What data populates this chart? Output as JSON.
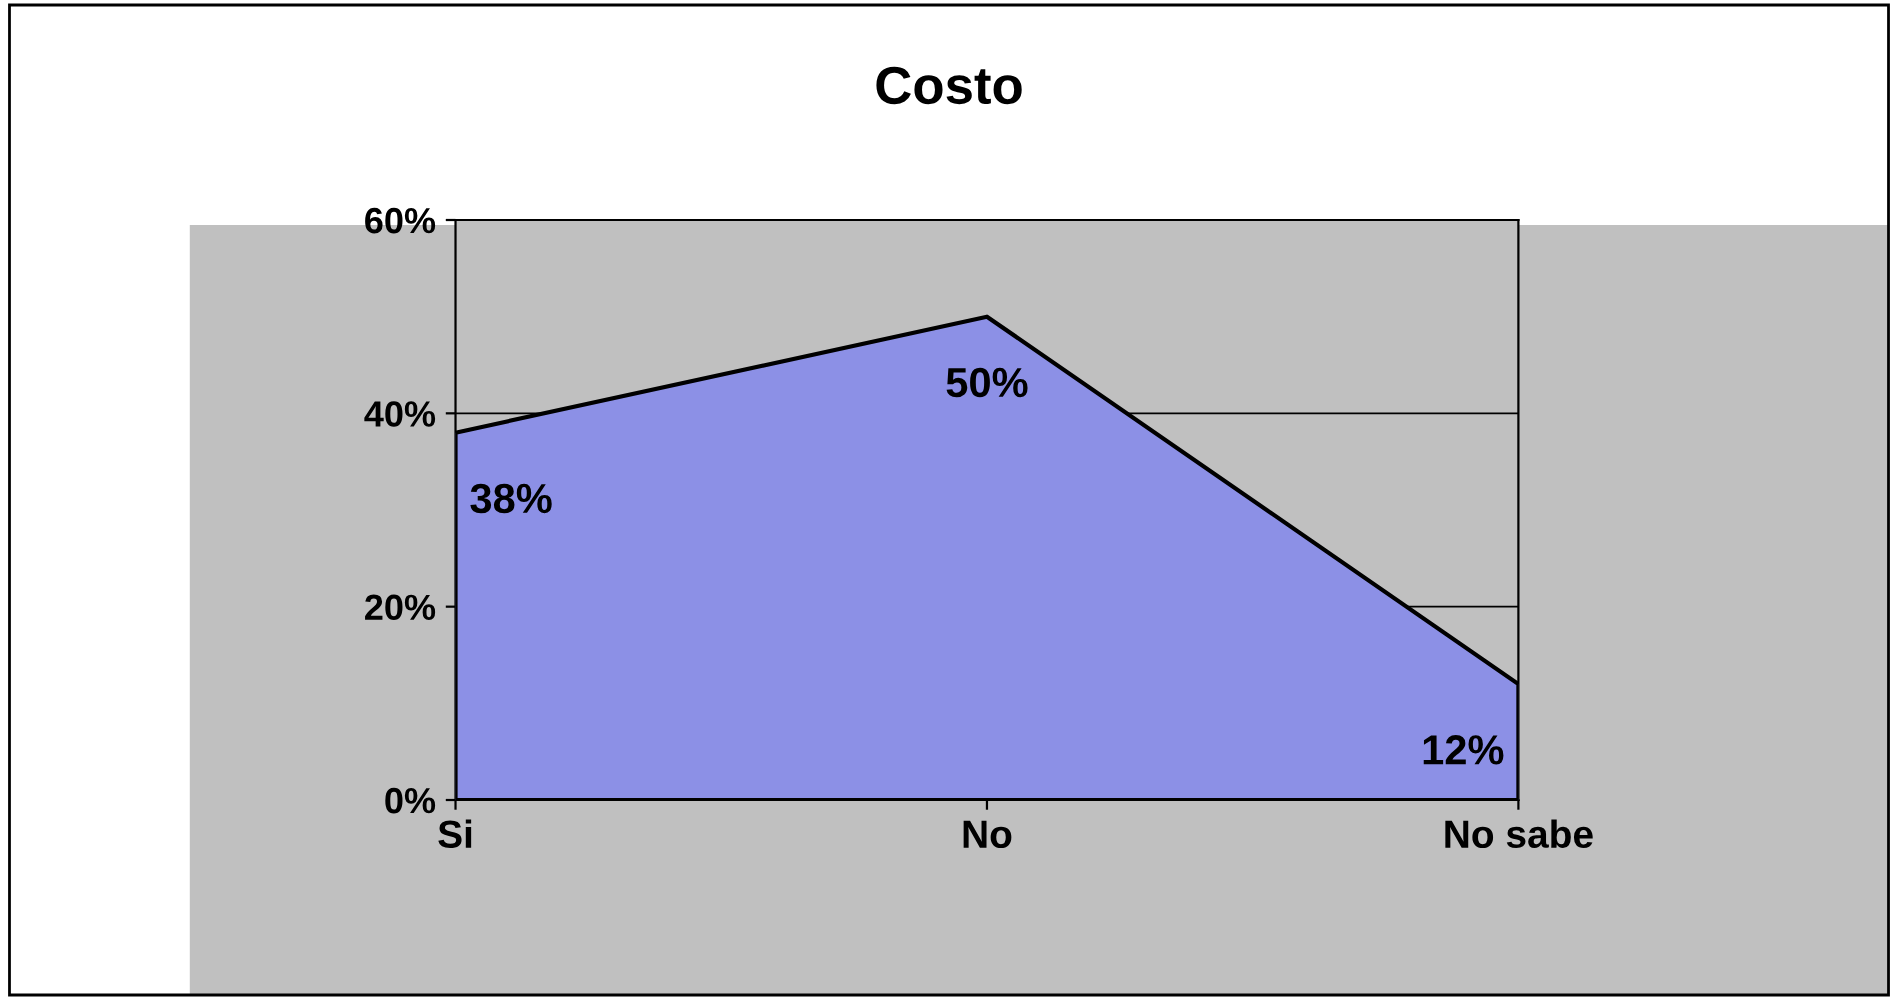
{
  "chart_data": {
    "type": "area",
    "title": "Costo",
    "categories": [
      "Si",
      "No",
      "No sabe"
    ],
    "series": [
      {
        "color": "#8c90e6",
        "values": [
          38,
          50,
          12
        ],
        "value_labels": [
          "38%",
          "50%",
          "12%"
        ]
      }
    ],
    "ylim": [
      0,
      60
    ],
    "yticks": [
      {
        "value": 0,
        "label": "0%"
      },
      {
        "value": 20,
        "label": "20%"
      },
      {
        "value": 40,
        "label": "40%"
      },
      {
        "value": 60,
        "label": "60%"
      }
    ],
    "grid": "y",
    "legend": false
  }
}
